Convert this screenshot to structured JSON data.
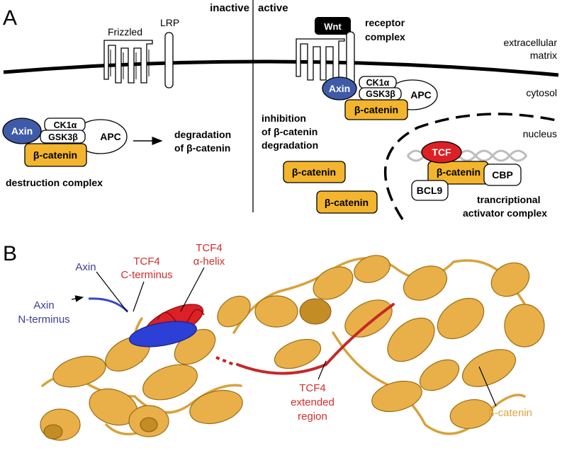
{
  "panel_a": {
    "letter": "A",
    "state_inactive": "inactive",
    "state_active": "active",
    "frizzled": "Frizzled",
    "lrp": "LRP",
    "wnt": "Wnt",
    "receptor_complex": [
      "receptor",
      "complex"
    ],
    "extracellular_matrix": [
      "extracellular",
      "matrix"
    ],
    "cytosol": "cytosol",
    "nucleus": "nucleus",
    "axin": "Axin",
    "ck1a": "CK1α",
    "gsk3b": "GSK3β",
    "apc": "APC",
    "beta_catenin": "β-catenin",
    "destruction_complex": "destruction complex",
    "degradation": [
      "degradation",
      "of β-catenin"
    ],
    "inhibition": [
      "inhibition",
      "of β-catenin",
      "degradation"
    ],
    "tcf": "TCF",
    "cbp": "CBP",
    "bcl9": "BCL9",
    "transcriptional_complex": [
      "trancriptional",
      "activator complex"
    ]
  },
  "panel_b": {
    "letter": "B",
    "axin": "Axin",
    "axin_nterm": [
      "Axin",
      "N-terminus"
    ],
    "tcf4_cterm": [
      "TCF4",
      "C-terminus"
    ],
    "tcf4_helix": [
      "TCF4",
      "α-helix"
    ],
    "tcf4_extended": [
      "TCF4",
      "extended",
      "region"
    ],
    "beta_catenin": "β-catenin"
  },
  "colors": {
    "axin_blue": "#3f5ba8",
    "beta_catenin": "#f2b52d",
    "tcf_red": "#dd1f26",
    "wnt_black": "#000000",
    "axin_label": "#3c3c9a",
    "tcf4_label": "#d42c2c",
    "bcat_label": "#dca73a"
  }
}
